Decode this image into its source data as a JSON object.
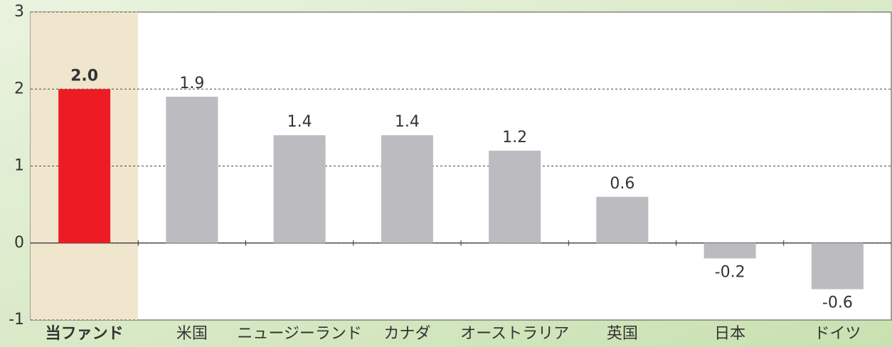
{
  "chart_data": {
    "type": "bar",
    "categories": [
      "当ファンド",
      "米国",
      "ニュージーランド",
      "カナダ",
      "オーストラリア",
      "英国",
      "日本",
      "ドイツ"
    ],
    "values": [
      2.0,
      1.9,
      1.4,
      1.4,
      1.2,
      0.6,
      -0.2,
      -0.6
    ],
    "value_labels": [
      "2.0",
      "1.9",
      "1.4",
      "1.4",
      "1.2",
      "0.6",
      "-0.2",
      "-0.6"
    ],
    "colors": [
      "#ed1c24",
      "#bcbcc0",
      "#bcbcc0",
      "#bcbcc0",
      "#bcbcc0",
      "#bcbcc0",
      "#bcbcc0",
      "#bcbcc0"
    ],
    "ylim": [
      -1,
      3
    ],
    "yticks": [
      -1,
      0,
      1,
      2,
      3
    ],
    "grid": true
  }
}
